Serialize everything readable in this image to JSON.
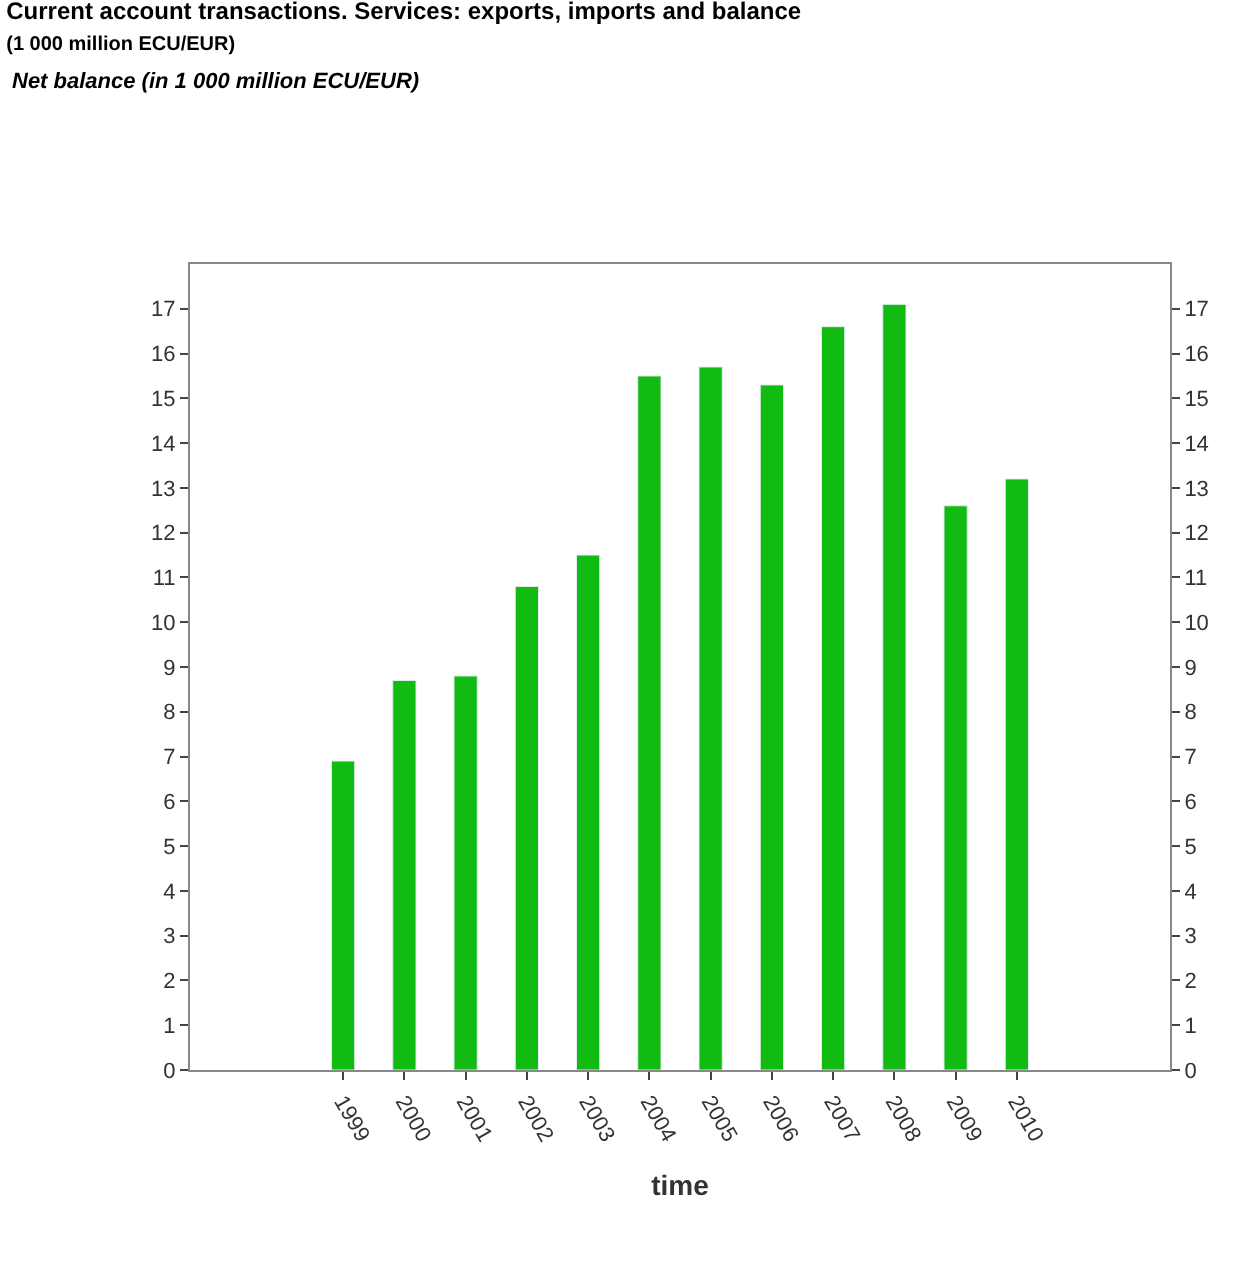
{
  "chart_data": {
    "type": "bar",
    "title": "Current account transactions. Services: exports, imports and balance",
    "subtitle": "(1 000 million ECU/EUR)",
    "annotations": [
      "Net balance (in 1 000 million ECU/EUR)"
    ],
    "xlabel": "time",
    "categories": [
      null,
      null,
      "1999",
      "2000",
      "2001",
      "2002",
      "2003",
      "2004",
      "2005",
      "2006",
      "2007",
      "2008",
      "2009",
      "2010",
      null,
      null
    ],
    "values": [
      null,
      null,
      6.9,
      8.7,
      8.8,
      10.8,
      11.5,
      15.5,
      15.7,
      15.3,
      16.6,
      17.1,
      12.6,
      13.2,
      null,
      null
    ],
    "color": "#11bb11",
    "ylim": [
      0,
      18
    ],
    "yticks": [
      0,
      1,
      2,
      3,
      4,
      5,
      6,
      7,
      8,
      9,
      10,
      11,
      12,
      13,
      14,
      15,
      16,
      17
    ],
    "y2lim": [
      0,
      18
    ],
    "y2ticks": [
      0,
      1,
      2,
      3,
      4,
      5,
      6,
      7,
      8,
      9,
      10,
      11,
      12,
      13,
      14,
      15,
      16,
      17
    ]
  }
}
